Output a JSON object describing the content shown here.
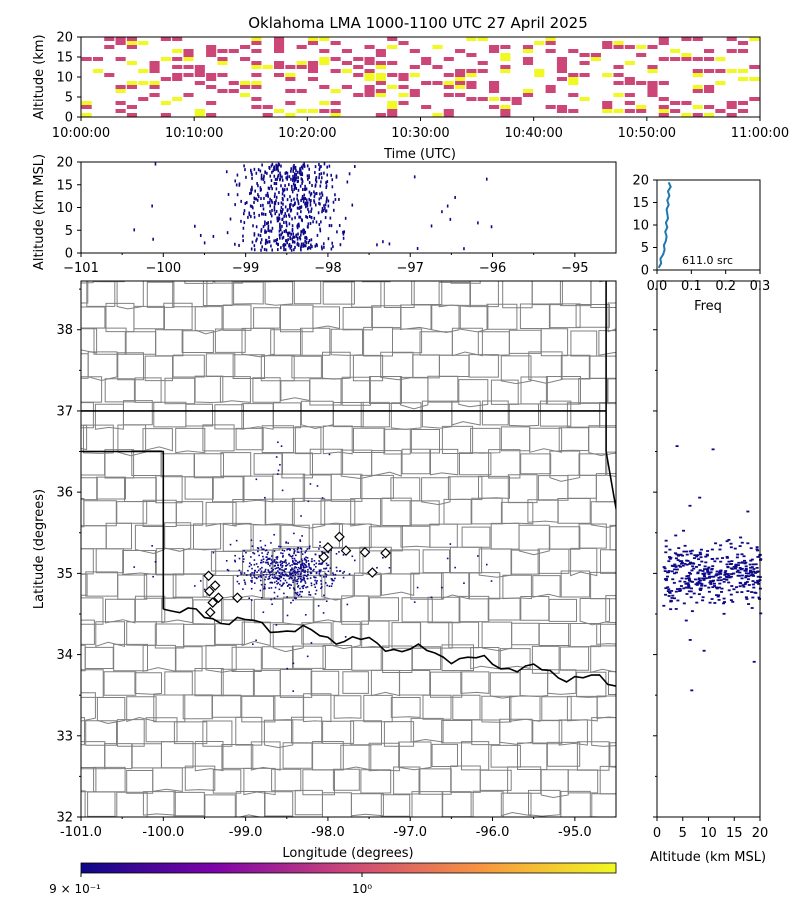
{
  "figure": {
    "title": "Oklahoma LMA 1000-1100 UTC 27 April 2025",
    "colorbar": {
      "tick_labels": [
        "9 × 10⁻¹",
        "10⁰"
      ],
      "colors": [
        "#0d0887",
        "#7e03a8",
        "#cc4778",
        "#f89540",
        "#f0f921"
      ]
    }
  },
  "chart_data": [
    {
      "panel": "time-height",
      "type": "heatmap",
      "xlabel": "Time (UTC)",
      "ylabel": "Altitude (km)",
      "xticks": [
        "10:00:00",
        "10:10:00",
        "10:20:00",
        "10:30:00",
        "10:40:00",
        "10:50:00",
        "11:00:00"
      ],
      "yticks": [
        "0",
        "5",
        "10",
        "15",
        "20"
      ],
      "ylim": [
        0,
        20
      ],
      "cell_colors": [
        "#cc4778",
        "#cc4778",
        "#cc4778",
        "#f0f921"
      ]
    },
    {
      "panel": "longitude-altitude",
      "type": "scatter",
      "xlabel": "",
      "ylabel": "Altitude (km MSL)",
      "xticks": [
        "−101",
        "−100",
        "−99",
        "−98",
        "−97",
        "−96",
        "−95"
      ],
      "yticks": [
        "0",
        "5",
        "10",
        "15",
        "20"
      ],
      "xlim": [
        -101,
        -94.5
      ],
      "ylim": [
        0,
        20
      ],
      "color": "#0d0887"
    },
    {
      "panel": "altitude-histogram",
      "type": "line",
      "xlabel": "Freq",
      "xticks": [
        "0.0",
        "0.1",
        "0.2",
        "0.3"
      ],
      "yticks": [
        "0",
        "5",
        "10",
        "15",
        "20"
      ],
      "xlim": [
        0,
        0.3
      ],
      "ylim": [
        0,
        20
      ],
      "annotation": "611.0 src",
      "color": "#1f77b4",
      "x": [
        0.005,
        0.012,
        0.01,
        0.018,
        0.022,
        0.02,
        0.026,
        0.028,
        0.024,
        0.03,
        0.026,
        0.032,
        0.03,
        0.028,
        0.034,
        0.03,
        0.036,
        0.032,
        0.04,
        0.034
      ],
      "y": [
        0.5,
        1.5,
        2.5,
        3.5,
        4.5,
        5.5,
        6.5,
        7.5,
        8.5,
        9.5,
        10.5,
        11.5,
        12.5,
        13.5,
        14.5,
        15.5,
        16.5,
        17.5,
        18.5,
        19.5
      ]
    },
    {
      "panel": "plan-view",
      "type": "scatter",
      "xlabel": "Longitude (degrees)",
      "ylabel": "Latitude (degrees)",
      "xticks": [
        "-101.0",
        "-100.0",
        "-99.0",
        "-98.0",
        "-97.0",
        "-96.0",
        "-95.0"
      ],
      "yticks": [
        "32",
        "33",
        "34",
        "35",
        "36",
        "37",
        "38"
      ],
      "xlim": [
        -101,
        -94.5
      ],
      "ylim": [
        32,
        38.6
      ],
      "color": "#0d0887",
      "stations": [
        {
          "lon": -99.45,
          "lat": 34.97
        },
        {
          "lon": -99.37,
          "lat": 34.85
        },
        {
          "lon": -99.44,
          "lat": 34.78
        },
        {
          "lon": -99.33,
          "lat": 34.7
        },
        {
          "lon": -99.4,
          "lat": 34.64
        },
        {
          "lon": -99.43,
          "lat": 34.52
        },
        {
          "lon": -99.1,
          "lat": 34.7
        },
        {
          "lon": -98.0,
          "lat": 35.32
        },
        {
          "lon": -97.86,
          "lat": 35.45
        },
        {
          "lon": -97.78,
          "lat": 35.28
        },
        {
          "lon": -97.55,
          "lat": 35.26
        },
        {
          "lon": -97.46,
          "lat": 35.01
        },
        {
          "lon": -97.3,
          "lat": 35.25
        },
        {
          "lon": -98.05,
          "lat": 35.2
        }
      ]
    },
    {
      "panel": "altitude-latitude",
      "type": "scatter",
      "xlabel": "Altitude (km MSL)",
      "xticks": [
        "0",
        "5",
        "10",
        "15",
        "20"
      ],
      "xlim": [
        0,
        20
      ],
      "ylim": [
        32,
        38.6
      ],
      "color": "#0d0887"
    }
  ]
}
